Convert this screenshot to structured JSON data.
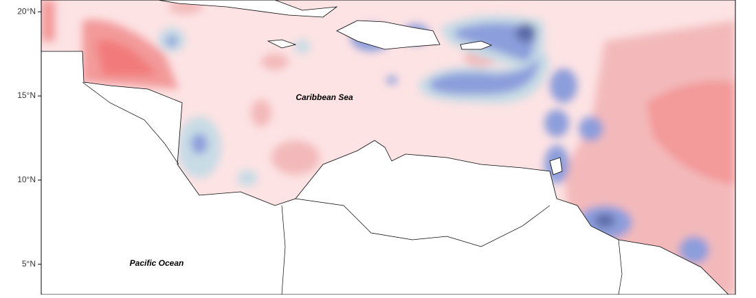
{
  "map": {
    "ylim": [
      3.2,
      20.7
    ],
    "latitude_ticks": [
      {
        "value": 20,
        "label": "20°N"
      },
      {
        "value": 15,
        "label": "15°N"
      },
      {
        "value": 10,
        "label": "10°N"
      },
      {
        "value": 5,
        "label": "5°N"
      }
    ],
    "labels": [
      {
        "text": "Caribbean Sea"
      },
      {
        "text": "Pacific Ocean"
      }
    ]
  }
}
